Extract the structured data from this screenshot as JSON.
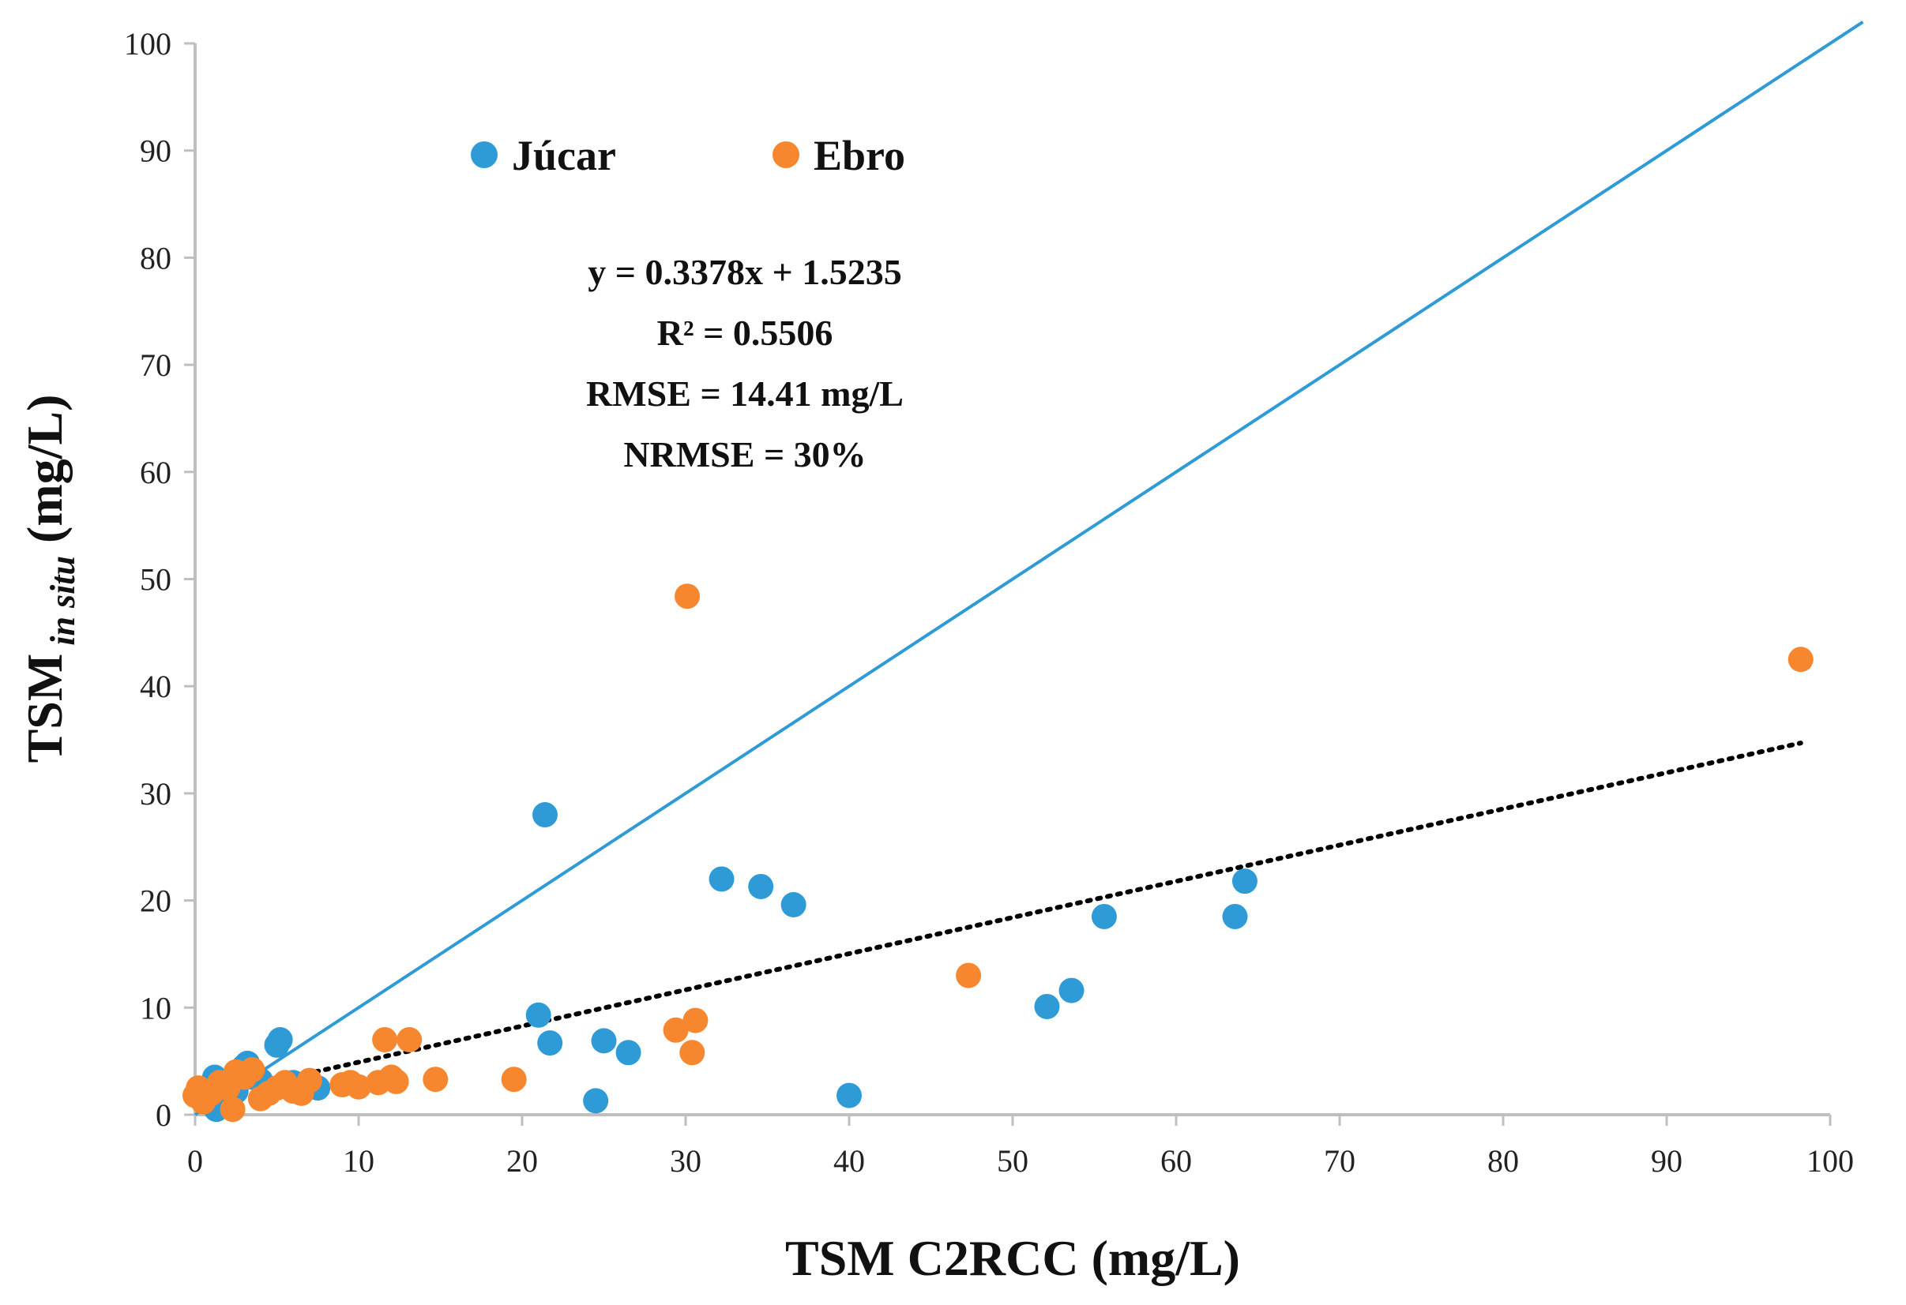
{
  "chart_data": {
    "type": "scatter",
    "xlabel": "TSM C2RCC (mg/L)",
    "ylabel_main": "TSM",
    "ylabel_sub": "in situ",
    "ylabel_unit": "(mg/L)",
    "xlim": [
      0,
      100
    ],
    "ylim": [
      0,
      100
    ],
    "xticks": [
      "0",
      "10",
      "20",
      "30",
      "40",
      "50",
      "60",
      "70",
      "80",
      "90",
      "100"
    ],
    "yticks": [
      "0",
      "10",
      "20",
      "30",
      "40",
      "50",
      "60",
      "70",
      "80",
      "90",
      "100"
    ],
    "grid": false,
    "legend_position": "top-left",
    "series": [
      {
        "name": "Júcar",
        "color": "#2e9bd6",
        "points": [
          [
            0.5,
            1.5
          ],
          [
            0.8,
            2.0
          ],
          [
            1.0,
            2.8
          ],
          [
            1.2,
            3.5
          ],
          [
            1.3,
            0.5
          ],
          [
            1.5,
            2.5
          ],
          [
            2.0,
            3.0
          ],
          [
            2.5,
            2.2
          ],
          [
            3.0,
            4.5
          ],
          [
            3.2,
            4.8
          ],
          [
            3.5,
            3.5
          ],
          [
            4.0,
            3.2
          ],
          [
            5.0,
            6.5
          ],
          [
            5.2,
            7.0
          ],
          [
            6.0,
            3.0
          ],
          [
            7.5,
            2.5
          ],
          [
            21.0,
            9.3
          ],
          [
            21.4,
            28.0
          ],
          [
            21.7,
            6.7
          ],
          [
            24.5,
            1.3
          ],
          [
            25.0,
            6.9
          ],
          [
            26.5,
            5.8
          ],
          [
            32.2,
            22.0
          ],
          [
            34.6,
            21.3
          ],
          [
            36.6,
            19.6
          ],
          [
            40.0,
            1.8
          ],
          [
            52.1,
            10.1
          ],
          [
            53.6,
            11.6
          ],
          [
            55.6,
            18.5
          ],
          [
            63.6,
            18.5
          ],
          [
            64.2,
            21.8
          ]
        ]
      },
      {
        "name": "Ebro",
        "color": "#f6872e",
        "points": [
          [
            0.0,
            1.8
          ],
          [
            0.2,
            2.5
          ],
          [
            0.5,
            1.2
          ],
          [
            1.0,
            2.0
          ],
          [
            1.5,
            3.0
          ],
          [
            2.0,
            2.5
          ],
          [
            2.3,
            0.5
          ],
          [
            2.5,
            4.0
          ],
          [
            3.0,
            3.5
          ],
          [
            3.5,
            4.2
          ],
          [
            4.0,
            1.5
          ],
          [
            4.5,
            2.0
          ],
          [
            5.0,
            2.5
          ],
          [
            5.5,
            3.0
          ],
          [
            6.0,
            2.2
          ],
          [
            6.5,
            2.0
          ],
          [
            7.0,
            3.2
          ],
          [
            9.0,
            2.8
          ],
          [
            9.5,
            3.0
          ],
          [
            10.0,
            2.6
          ],
          [
            11.2,
            3.0
          ],
          [
            11.6,
            7.0
          ],
          [
            12.0,
            3.5
          ],
          [
            12.3,
            3.1
          ],
          [
            13.1,
            7.0
          ],
          [
            14.7,
            3.3
          ],
          [
            19.5,
            3.3
          ],
          [
            29.4,
            7.9
          ],
          [
            30.1,
            48.4
          ],
          [
            30.4,
            5.8
          ],
          [
            30.6,
            8.8
          ],
          [
            47.3,
            13.0
          ],
          [
            98.2,
            42.5
          ]
        ]
      }
    ],
    "reference_line": {
      "name": "1:1 line",
      "color": "#2e9bd6",
      "x": [
        0,
        102
      ],
      "y": [
        0,
        102
      ]
    },
    "trendline": {
      "slope": 0.3378,
      "intercept": 1.5235,
      "x_range": [
        0,
        98.2
      ],
      "style": "dotted",
      "color": "#000000"
    },
    "stats": [
      "y = 0.3378x + 1.5235",
      "R² = 0.5506",
      "RMSE = 14.41 mg/L",
      "NRMSE = 30%"
    ]
  }
}
